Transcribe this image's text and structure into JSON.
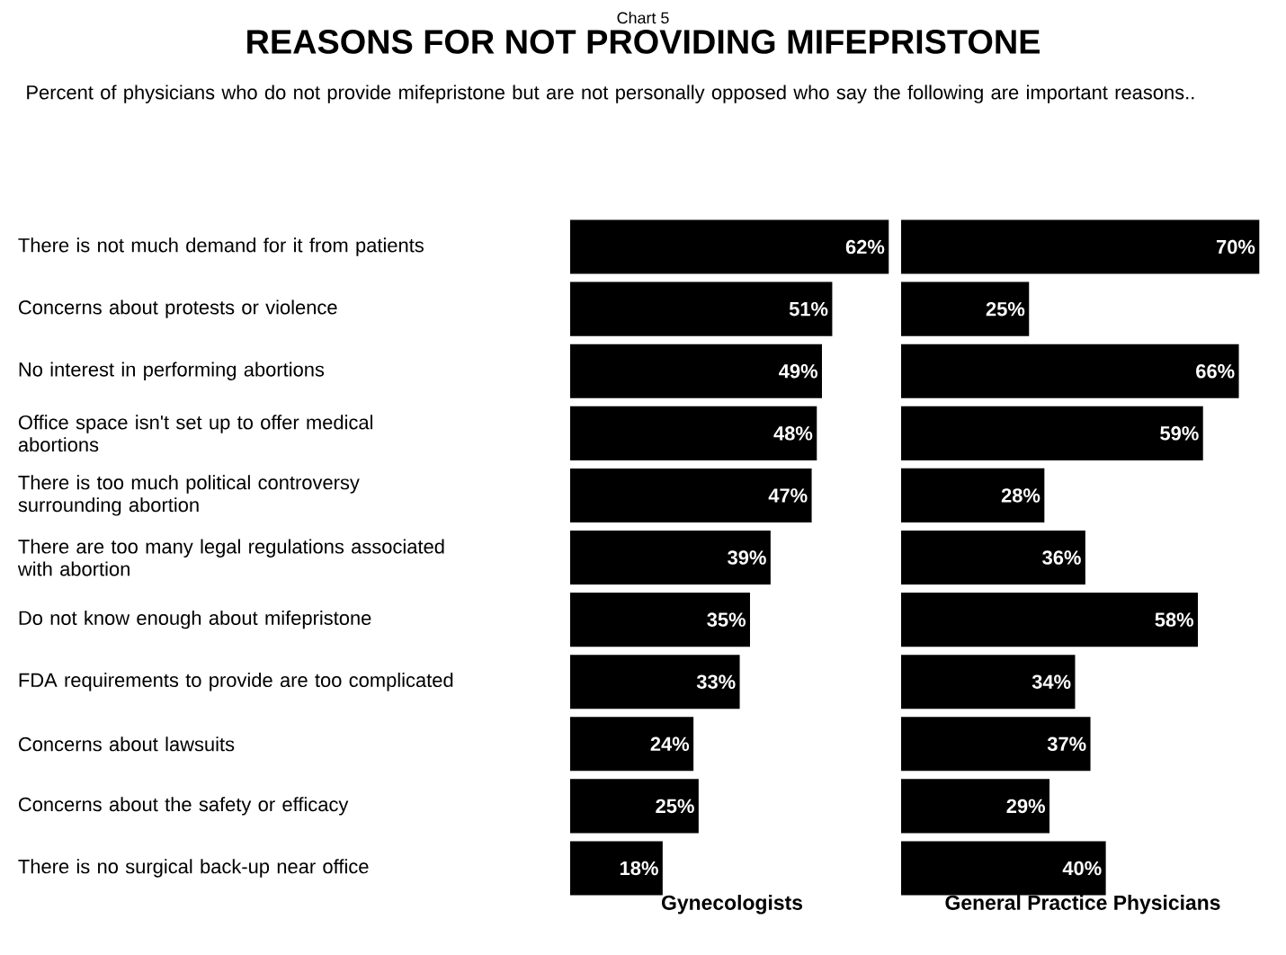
{
  "chart_data": [
    {
      "type": "bar",
      "orientation": "horizontal",
      "title": "REASONS FOR NOT PROVIDING MIFEPRISTONE",
      "subtitle": "Percent of physicians who do not provide mifepristone but are not personally opposed who say the following are important reasons..",
      "annotations": [
        "Chart 5"
      ],
      "categories": [
        "There is not much demand for it from patients",
        "Concerns about protests or violence",
        "No interest in performing abortions",
        "Office space isn't set up to offer medical abortions",
        "There is too much political controversy surrounding abortion",
        "There are too many legal regulations associated with abortion",
        "Do not know enough about mifepristone",
        "FDA requirements to provide are too complicated",
        "Concerns about lawsuits",
        "Concerns about the safety or efficacy",
        "There is no surgical back-up near office"
      ],
      "values": [
        62,
        51,
        49,
        48,
        47,
        39,
        35,
        33,
        24,
        25,
        18
      ],
      "value_labels": [
        "62%",
        "51%",
        "49%",
        "48%",
        "47%",
        "39%",
        "35%",
        "33%",
        "24%",
        "25%",
        "18%"
      ],
      "color": "#000000",
      "xlim": [
        0,
        63
      ],
      "xlabel": "Gynecologists",
      "tick_labels": "y"
    },
    {
      "type": "bar",
      "orientation": "horizontal",
      "categories": [
        null,
        null,
        null,
        null,
        null,
        null,
        null,
        null,
        null,
        null,
        null
      ],
      "values": [
        70,
        25,
        66,
        59,
        28,
        36,
        58,
        34,
        37,
        29,
        40
      ],
      "value_labels": [
        "70%",
        "25%",
        "66%",
        "59%",
        "28%",
        "36%",
        "58%",
        "34%",
        "37%",
        "29%",
        "40%"
      ],
      "color": "#000000",
      "xlim": [
        0,
        71
      ],
      "xlabel": "General Practice Physicians",
      "tick_labels": false
    }
  ]
}
